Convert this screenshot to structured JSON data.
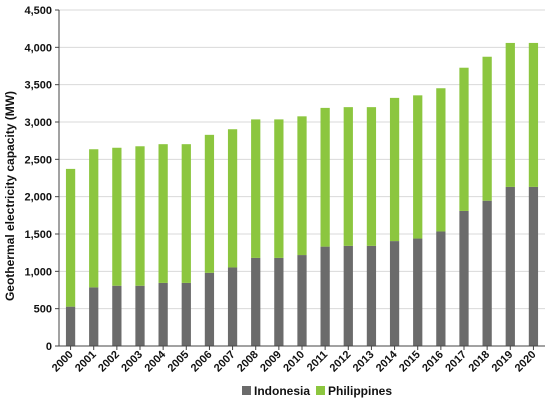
{
  "chart_data": {
    "type": "bar",
    "stacked": true,
    "categories": [
      "2000",
      "2001",
      "2002",
      "2003",
      "2004",
      "2005",
      "2006",
      "2007",
      "2008",
      "2009",
      "2010",
      "2011",
      "2012",
      "2013",
      "2014",
      "2015",
      "2016",
      "2017",
      "2018",
      "2019",
      "2020"
    ],
    "series": [
      {
        "name": "Indonesia",
        "color": "#6b6b6b",
        "values": [
          527,
          785,
          807,
          807,
          845,
          845,
          980,
          1052,
          1180,
          1180,
          1218,
          1331,
          1341,
          1341,
          1405,
          1439,
          1534,
          1809,
          1946,
          2131,
          2131
        ]
      },
      {
        "name": "Philippines",
        "color": "#8cc63f",
        "values": [
          1845,
          1850,
          1848,
          1868,
          1858,
          1858,
          1848,
          1851,
          1855,
          1855,
          1858,
          1858,
          1858,
          1858,
          1918,
          1918,
          1918,
          1918,
          1928,
          1928,
          1928
        ]
      }
    ],
    "ylabel": "Geothermal electricity capacity  (MW)",
    "xlabel": "",
    "ylim": [
      0,
      4500
    ],
    "yticks": [
      0,
      500,
      1000,
      1500,
      2000,
      2500,
      3000,
      3500,
      4000,
      4500
    ],
    "ytick_labels": [
      "0",
      "500",
      "1,000",
      "1,500",
      "2,000",
      "2,500",
      "3,000",
      "3,500",
      "4,000",
      "4,500"
    ],
    "grid": true,
    "legend_position": "bottom"
  }
}
